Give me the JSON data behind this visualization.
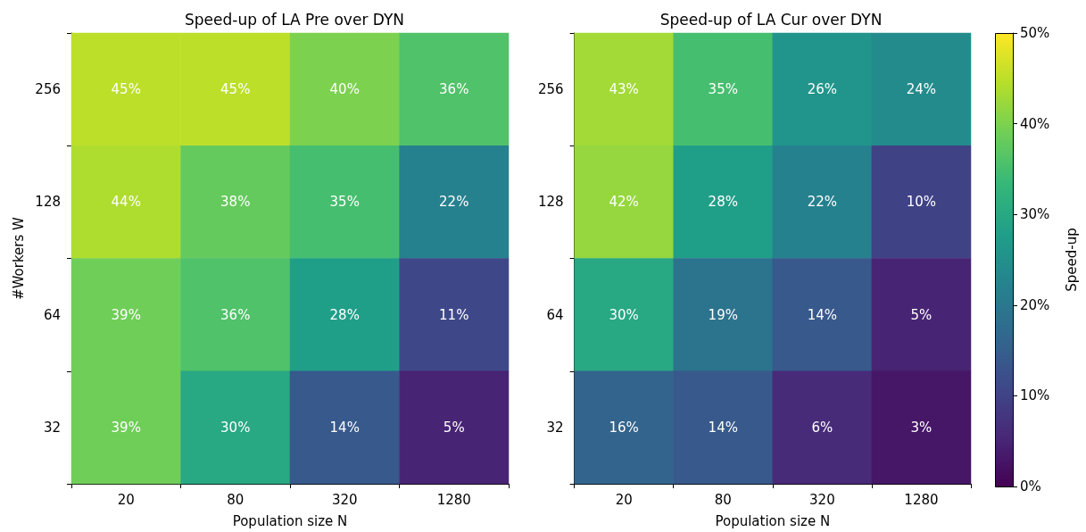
{
  "chart_data": [
    {
      "type": "heatmap",
      "title": "Speed-up of LA Pre over DYN",
      "xlabel": "Population size N",
      "ylabel": "#Workers W",
      "categories": [
        "20",
        "80",
        "320",
        "1280"
      ],
      "y_categories": [
        "256",
        "128",
        "64",
        "32"
      ],
      "cells": [
        [
          45,
          45,
          40,
          36
        ],
        [
          44,
          38,
          35,
          22
        ],
        [
          39,
          36,
          28,
          11
        ],
        [
          39,
          30,
          14,
          5
        ]
      ],
      "cell_labels": [
        [
          "45%",
          "45%",
          "40%",
          "36%"
        ],
        [
          "44%",
          "38%",
          "35%",
          "22%"
        ],
        [
          "39%",
          "36%",
          "28%",
          "11%"
        ],
        [
          "39%",
          "30%",
          "14%",
          "5%"
        ]
      ]
    },
    {
      "type": "heatmap",
      "title": "Speed-up of LA Cur over DYN",
      "xlabel": "Population size N",
      "clabel": "Speed-up",
      "categories": [
        "20",
        "80",
        "320",
        "1280"
      ],
      "y_categories": [
        "256",
        "128",
        "64",
        "32"
      ],
      "cells": [
        [
          43,
          35,
          26,
          24
        ],
        [
          42,
          28,
          22,
          10
        ],
        [
          30,
          19,
          14,
          5
        ],
        [
          16,
          14,
          6,
          3
        ]
      ],
      "cell_labels": [
        [
          "43%",
          "35%",
          "26%",
          "24%"
        ],
        [
          "42%",
          "28%",
          "22%",
          "10%"
        ],
        [
          "30%",
          "19%",
          "14%",
          "5%"
        ],
        [
          "16%",
          "14%",
          "6%",
          "3%"
        ]
      ],
      "clim": [
        0,
        50
      ],
      "cticks": [
        {
          "value": 0,
          "label": "0%"
        },
        {
          "value": 10,
          "label": "10%"
        },
        {
          "value": 20,
          "label": "20%"
        },
        {
          "value": 30,
          "label": "30%"
        },
        {
          "value": 40,
          "label": "40%"
        },
        {
          "value": 50,
          "label": "50%"
        }
      ]
    }
  ]
}
